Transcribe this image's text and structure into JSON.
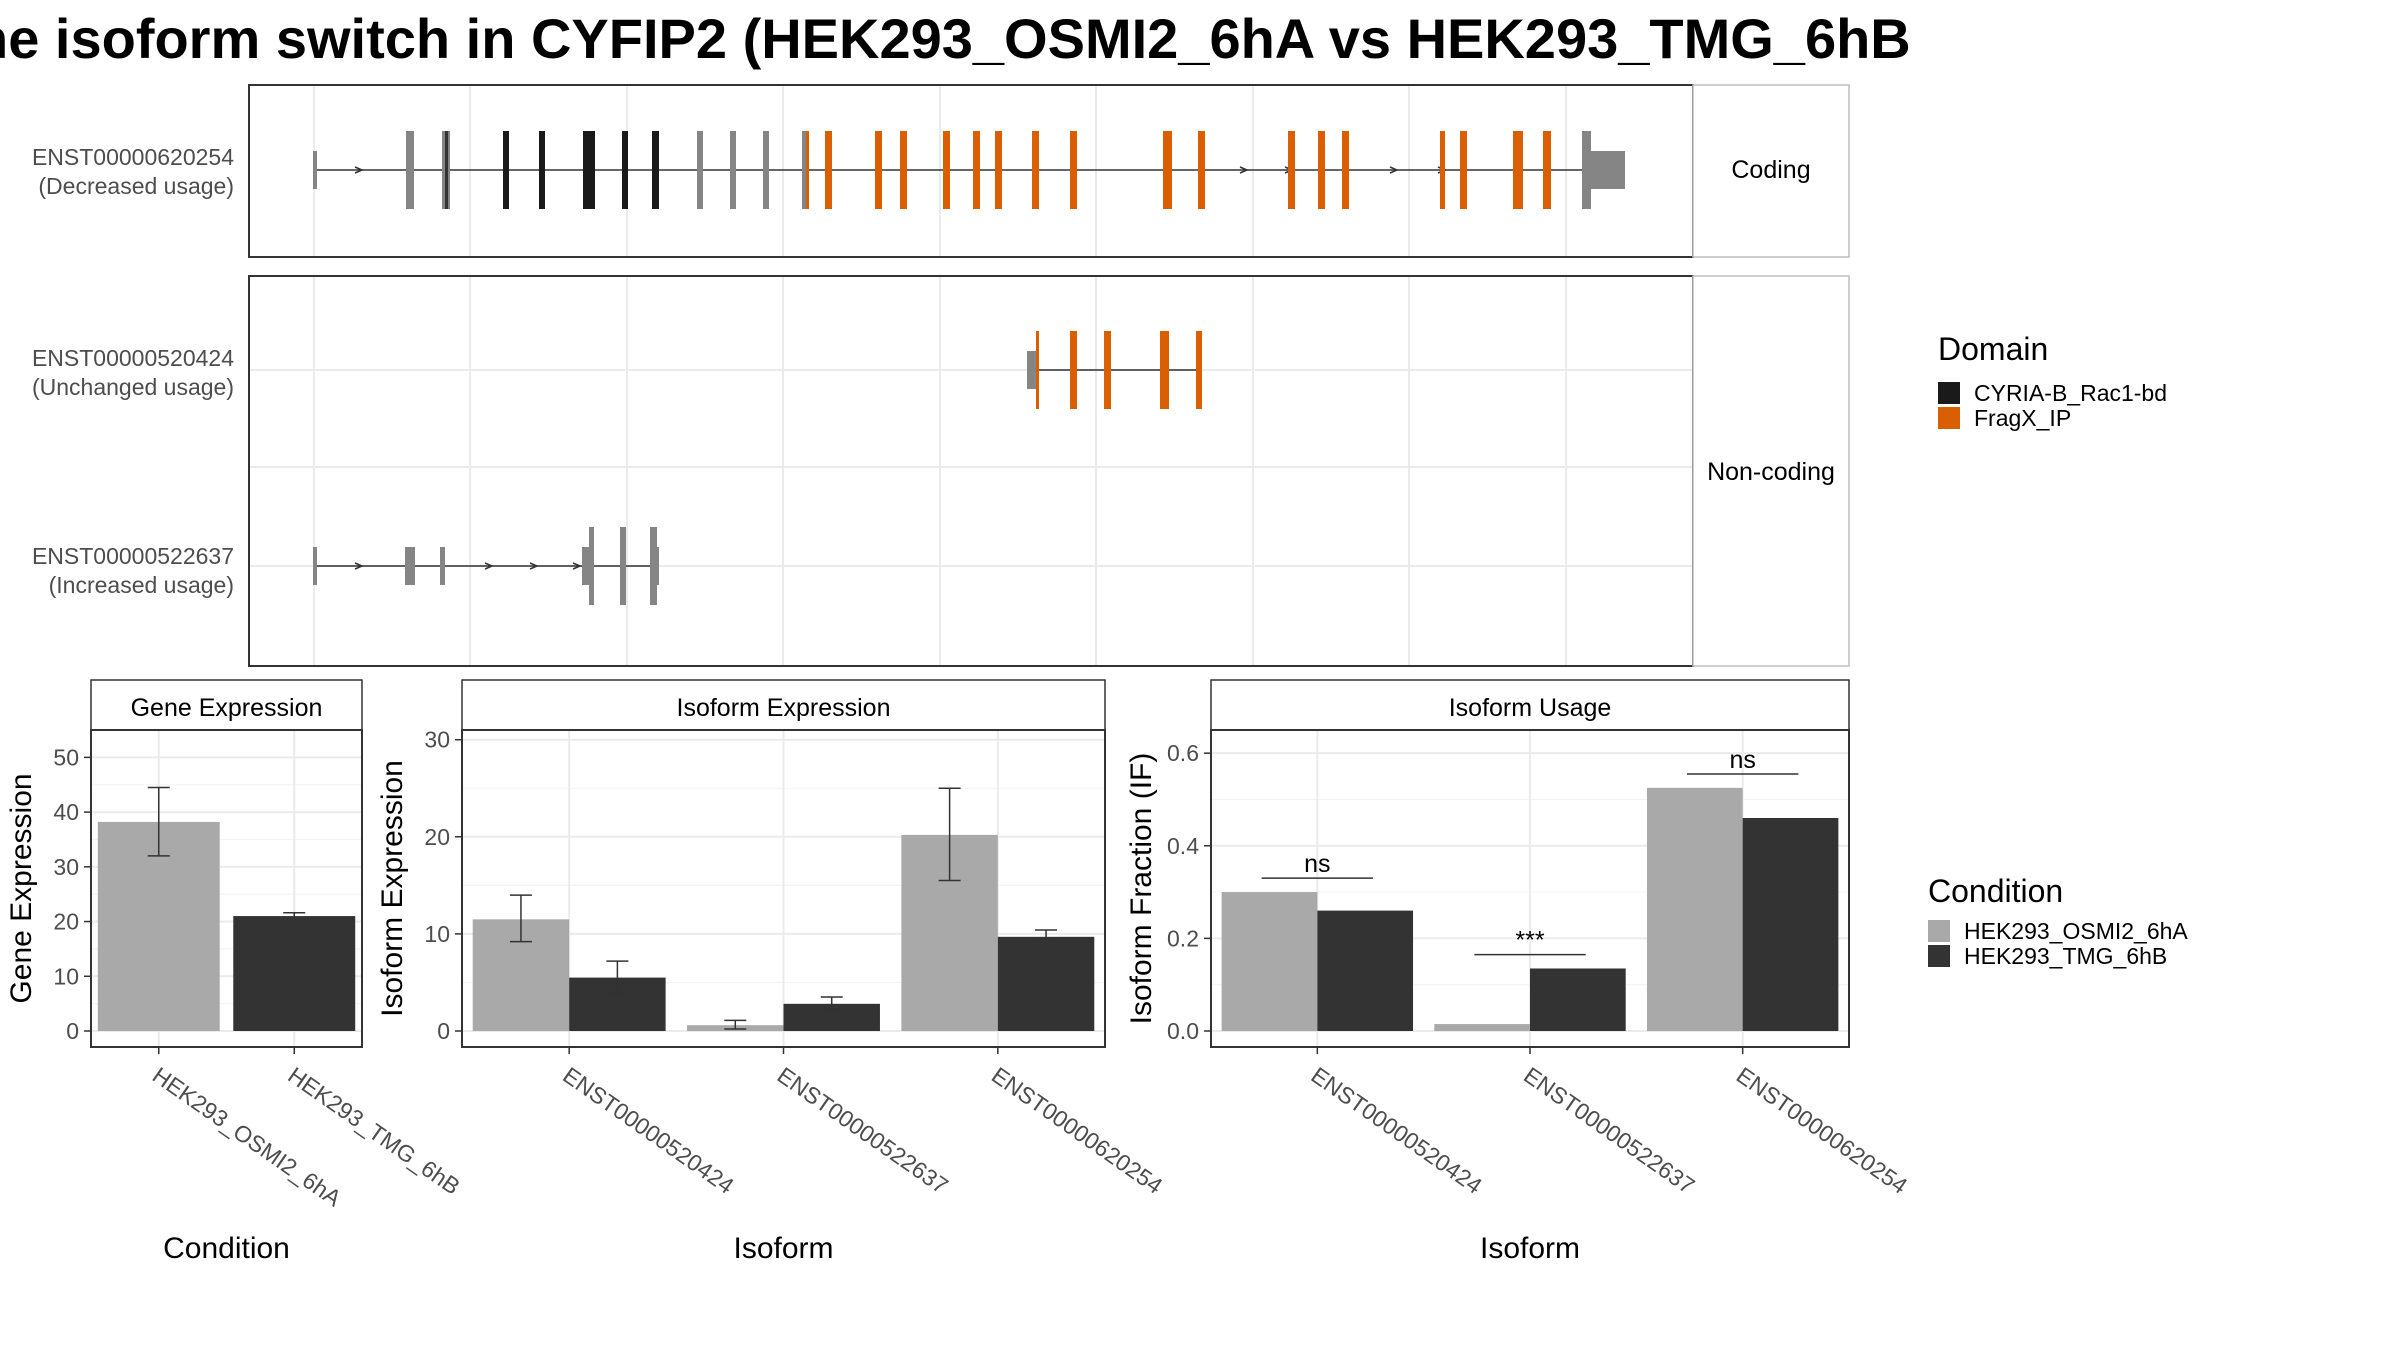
{
  "title": "he isoform switch in CYFIP2 (HEK293_OSMI2_6hA vs HEK293_TMG_6hB",
  "structure": {
    "coding_strip": "Coding",
    "noncoding_strip": "Non-coding",
    "transcripts": [
      {
        "id": "ENST00000620254",
        "usage": "(Decreased usage)"
      },
      {
        "id": "ENST00000520424",
        "usage": "(Unchanged usage)"
      },
      {
        "id": "ENST00000522637",
        "usage": "(Increased usage)"
      }
    ]
  },
  "legend_domain": {
    "title": "Domain",
    "items": [
      {
        "label": "CYRIA-B_Rac1-bd",
        "color": "#1a1a1a"
      },
      {
        "label": "FragX_IP",
        "color": "#d95f02"
      }
    ]
  },
  "legend_condition": {
    "title": "Condition",
    "items": [
      {
        "label": "HEK293_OSMI2_6hA",
        "color": "#a9a9a9"
      },
      {
        "label": "HEK293_TMG_6hB",
        "color": "#333333"
      }
    ]
  },
  "chart_data": [
    {
      "type": "bar",
      "title": "Gene Expression",
      "xlabel": "Condition",
      "ylabel": "Gene Expression",
      "categories": [
        "HEK293_OSMI2_6hA",
        "HEK293_TMG_6hB"
      ],
      "values": [
        38.2,
        21.0
      ],
      "errors": [
        [
          32.0,
          44.5
        ],
        [
          20.5,
          21.6
        ]
      ],
      "ylim": [
        0,
        55
      ],
      "yticks": [
        0,
        10,
        20,
        30,
        40,
        50
      ],
      "grid": true
    },
    {
      "type": "bar",
      "title": "Isoform Expression",
      "xlabel": "Isoform",
      "ylabel": "Isoform Expression",
      "categories": [
        "ENST00000520424",
        "ENST00000522637",
        "ENST00000620254"
      ],
      "series": [
        {
          "name": "HEK293_OSMI2_6hA",
          "values": [
            11.5,
            0.6,
            20.2
          ],
          "errors": [
            [
              9.2,
              14.0
            ],
            [
              0.2,
              1.1
            ],
            [
              15.5,
              25.0
            ]
          ]
        },
        {
          "name": "HEK293_TMG_6hB",
          "values": [
            5.5,
            2.8,
            9.7
          ],
          "errors": [
            [
              3.9,
              7.2
            ],
            [
              2.2,
              3.5
            ],
            [
              9.2,
              10.4
            ]
          ]
        }
      ],
      "ylim": [
        0,
        31
      ],
      "yticks": [
        0,
        10,
        20,
        30
      ],
      "grid": true
    },
    {
      "type": "bar",
      "title": "Isoform Usage",
      "xlabel": "Isoform",
      "ylabel": "Isoform Fraction (IF)",
      "categories": [
        "ENST00000520424",
        "ENST00000522637",
        "ENST00000620254"
      ],
      "series": [
        {
          "name": "HEK293_OSMI2_6hA",
          "values": [
            0.3,
            0.015,
            0.525
          ]
        },
        {
          "name": "HEK293_TMG_6hB",
          "values": [
            0.26,
            0.135,
            0.46
          ]
        }
      ],
      "significance": [
        "ns",
        "***",
        "ns"
      ],
      "ylim": [
        0,
        0.65
      ],
      "yticks": [
        0.0,
        0.2,
        0.4,
        0.6
      ],
      "grid": true
    }
  ]
}
